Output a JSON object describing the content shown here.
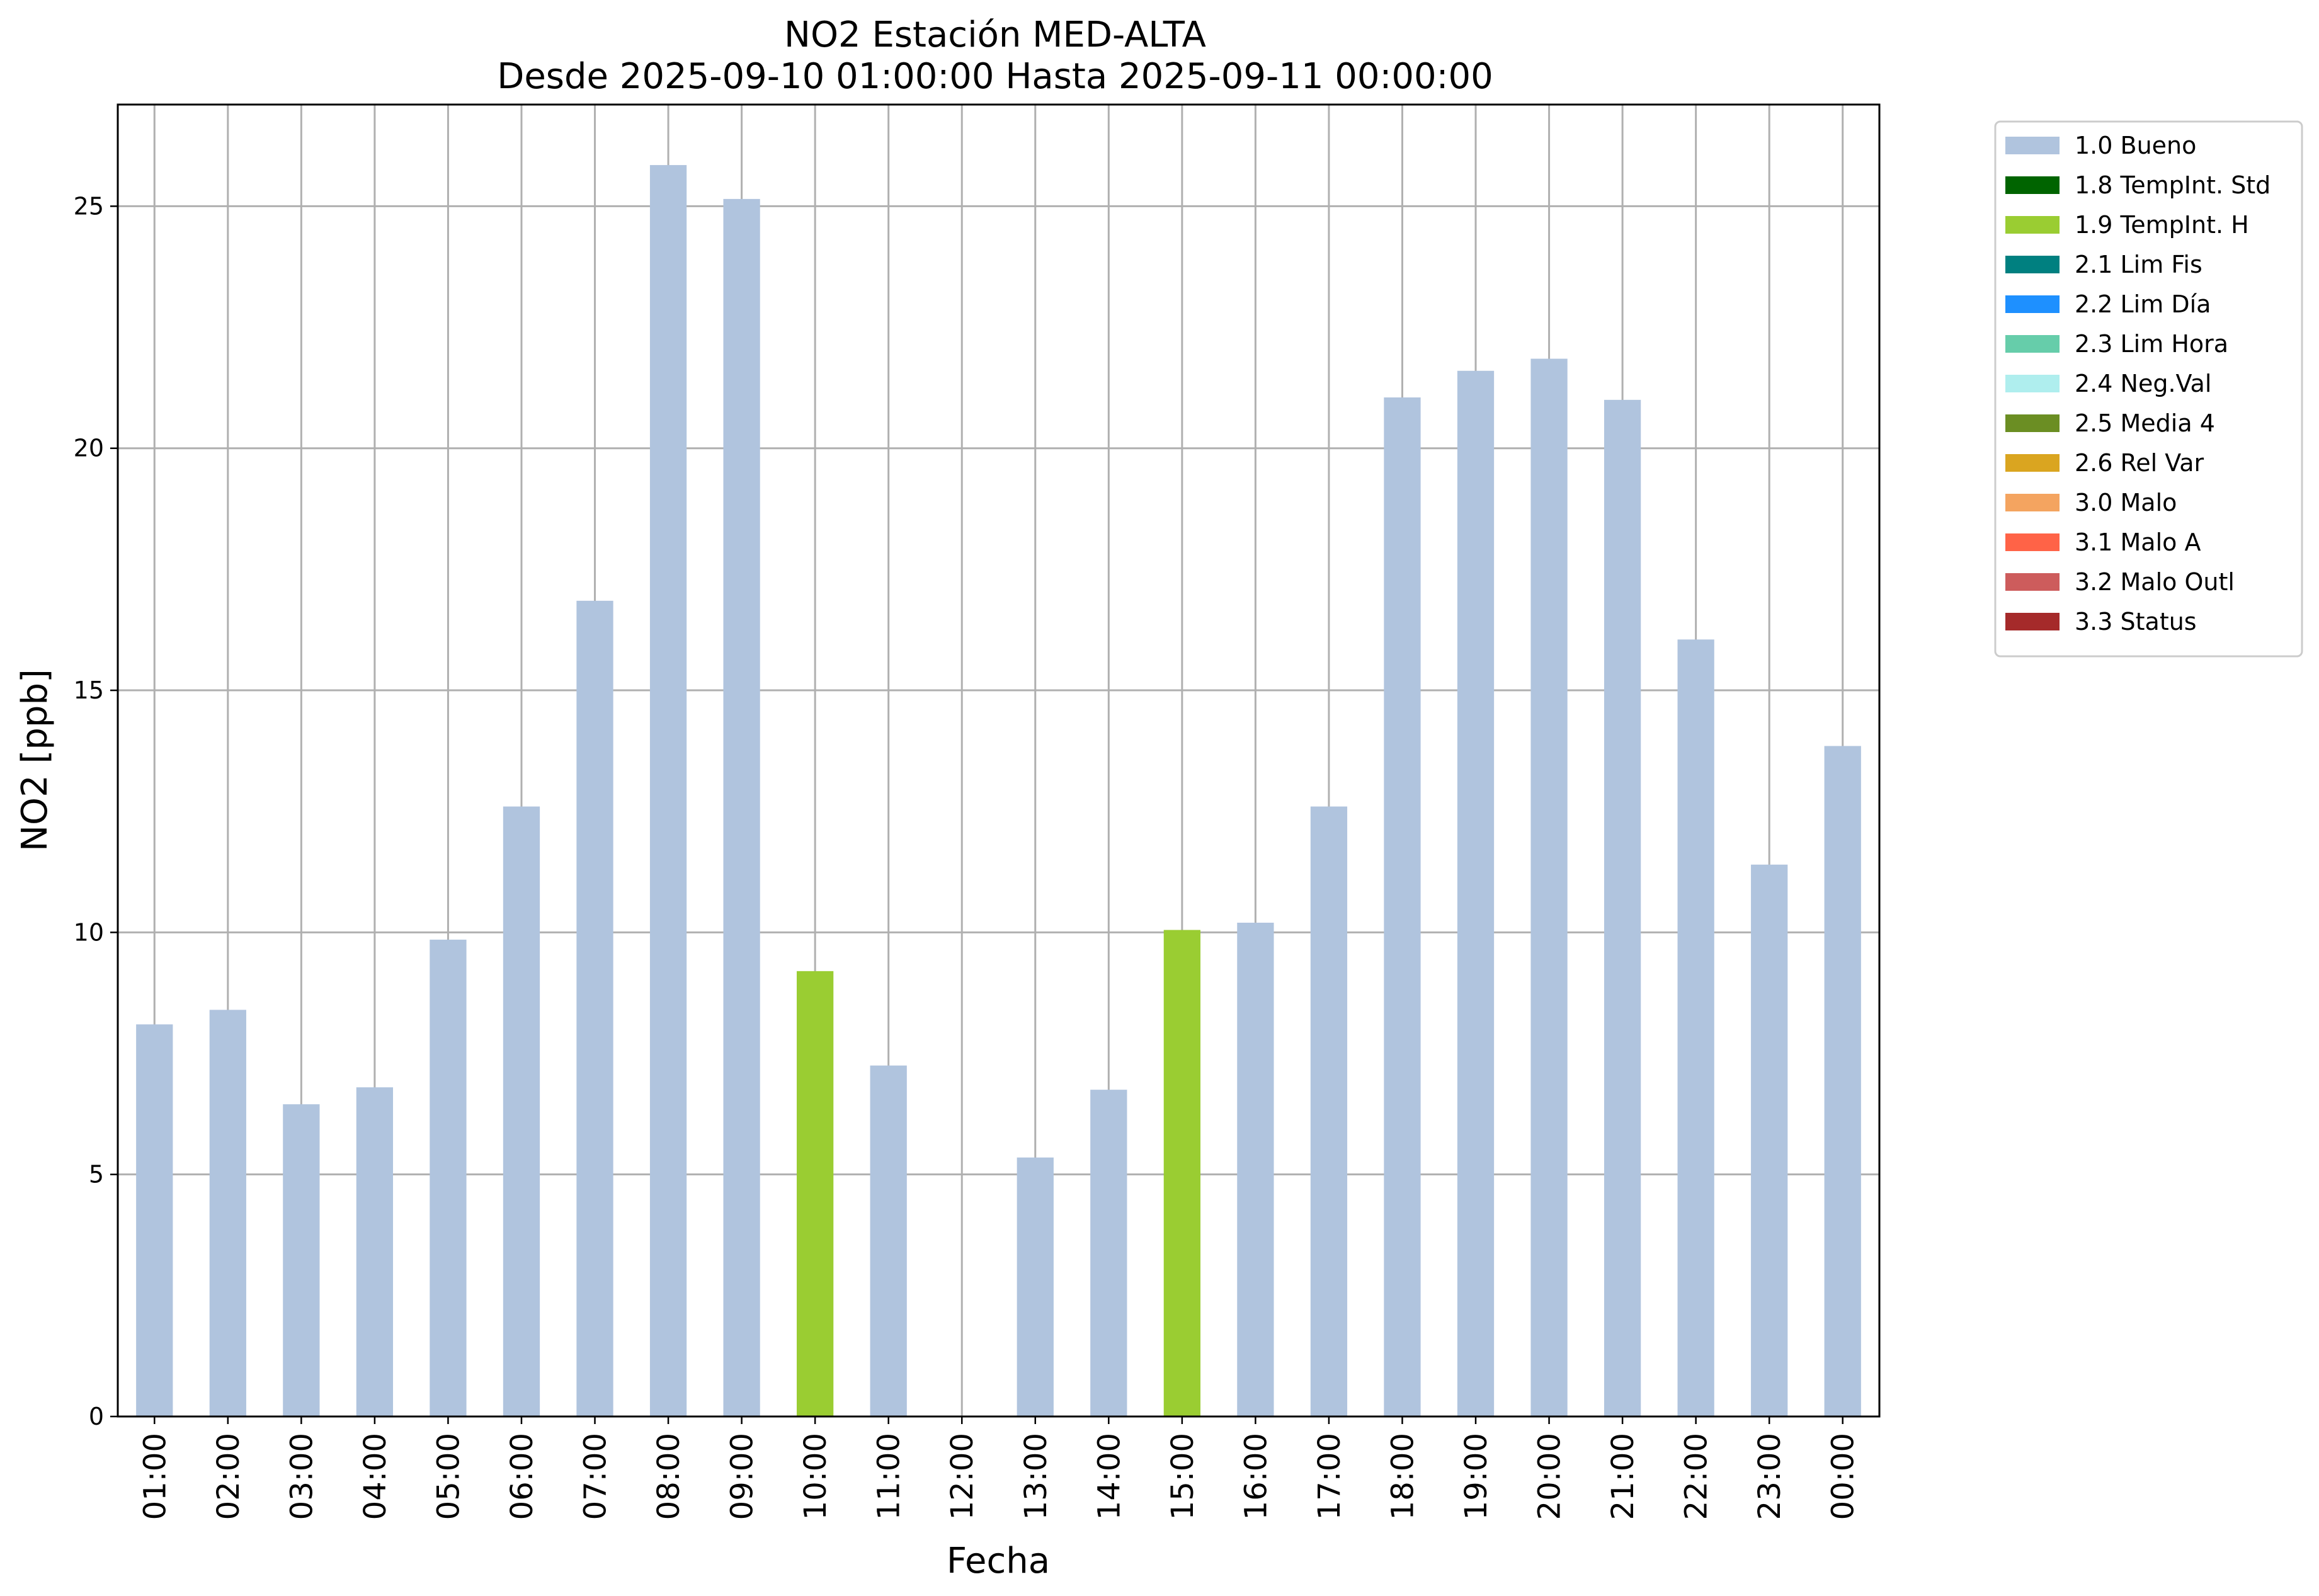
{
  "chart_data": {
    "type": "bar",
    "title": "NO2 Estación MED-ALTA",
    "subtitle": "Desde 2025-09-10 01:00:00 Hasta 2025-09-11 00:00:00",
    "xlabel": "Fecha",
    "ylabel": "NO2 [ppb]",
    "ylim": [
      0,
      27.1
    ],
    "yticks": [
      0,
      5,
      10,
      15,
      20,
      25
    ],
    "grid": true,
    "legend_position": "outside-top-right",
    "categories": [
      "01:00",
      "02:00",
      "03:00",
      "04:00",
      "05:00",
      "06:00",
      "07:00",
      "08:00",
      "09:00",
      "10:00",
      "11:00",
      "12:00",
      "13:00",
      "14:00",
      "15:00",
      "16:00",
      "17:00",
      "18:00",
      "19:00",
      "20:00",
      "21:00",
      "22:00",
      "23:00",
      "00:00"
    ],
    "values": [
      8.1,
      8.4,
      6.45,
      6.8,
      9.85,
      12.6,
      16.85,
      25.85,
      25.15,
      9.2,
      7.25,
      null,
      5.35,
      6.75,
      10.05,
      10.2,
      12.6,
      21.05,
      21.6,
      21.85,
      21.0,
      16.05,
      11.4,
      13.85
    ],
    "flags": [
      "1.0 Bueno",
      "1.0 Bueno",
      "1.0 Bueno",
      "1.0 Bueno",
      "1.0 Bueno",
      "1.0 Bueno",
      "1.0 Bueno",
      "1.0 Bueno",
      "1.0 Bueno",
      "1.9 TempInt. H",
      "1.0 Bueno",
      null,
      "1.0 Bueno",
      "1.0 Bueno",
      "1.9 TempInt. H",
      "1.0 Bueno",
      "1.0 Bueno",
      "1.0 Bueno",
      "1.0 Bueno",
      "1.0 Bueno",
      "1.0 Bueno",
      "1.0 Bueno",
      "1.0 Bueno",
      "1.0 Bueno"
    ],
    "legend": [
      {
        "label": "1.0 Bueno",
        "color": "#b0c4de"
      },
      {
        "label": "1.8 TempInt. Std",
        "color": "#006400"
      },
      {
        "label": "1.9 TempInt. H",
        "color": "#9acd32"
      },
      {
        "label": "2.1 Lim Fis",
        "color": "#008080"
      },
      {
        "label": "2.2 Lim Día",
        "color": "#1e90ff"
      },
      {
        "label": "2.3 Lim Hora",
        "color": "#66cdaa"
      },
      {
        "label": "2.4 Neg.Val",
        "color": "#afeeee"
      },
      {
        "label": "2.5 Media 4",
        "color": "#6b8e23"
      },
      {
        "label": "2.6 Rel Var",
        "color": "#daa520"
      },
      {
        "label": "3.0 Malo",
        "color": "#f4a460"
      },
      {
        "label": "3.1 Malo A",
        "color": "#ff6347"
      },
      {
        "label": "3.2 Malo Outl",
        "color": "#cd5c5c"
      },
      {
        "label": "3.3 Status",
        "color": "#a52a2a"
      }
    ]
  }
}
